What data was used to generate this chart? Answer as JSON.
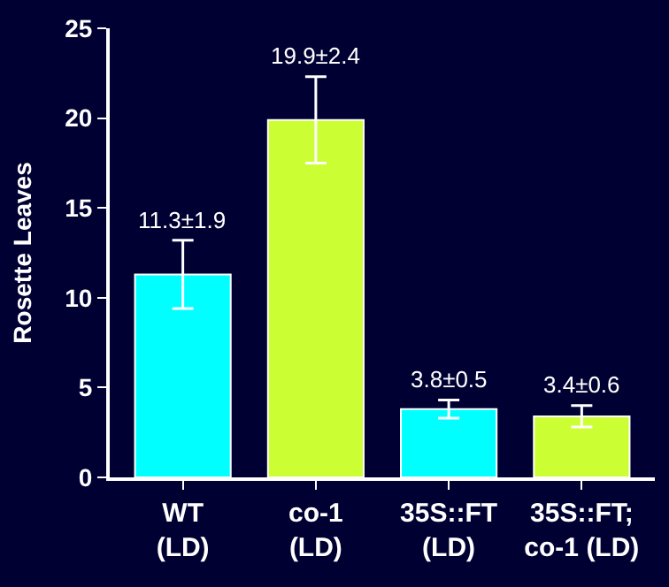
{
  "chart_data": {
    "type": "bar",
    "ylabel": "Rosette Leaves",
    "categories": [
      "WT\n(LD)",
      "co-1\n(LD)",
      "35S::FT\n(LD)",
      "35S::FT;\nco-1 (LD)"
    ],
    "values": [
      11.3,
      19.9,
      3.8,
      3.4
    ],
    "colors": [
      "#00ffff",
      "#ccff33",
      "#00ffff",
      "#ccff33"
    ],
    "errors": [
      1.9,
      2.4,
      0.5,
      0.6
    ],
    "value_labels": [
      "11.3±1.9",
      "19.9±2.4",
      "3.8±0.5",
      "3.4±0.6"
    ],
    "ylim": [
      0,
      25
    ],
    "yticks": [
      0,
      5,
      10,
      15,
      20,
      25
    ]
  }
}
